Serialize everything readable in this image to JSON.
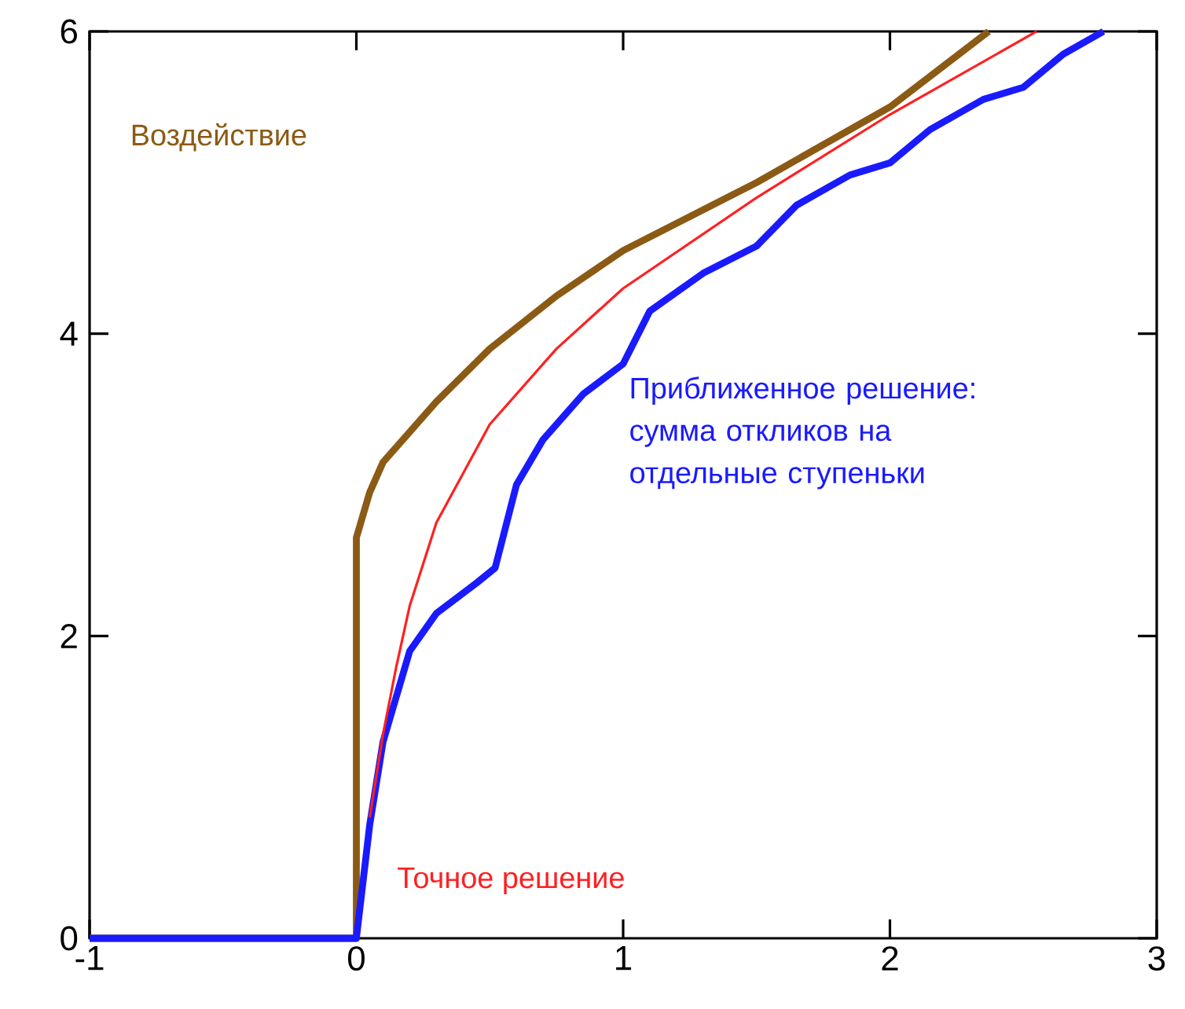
{
  "chart_data": {
    "type": "line",
    "xlim": [
      -1,
      3
    ],
    "ylim": [
      0,
      6
    ],
    "xticks": [
      -1,
      0,
      1,
      2,
      3
    ],
    "yticks": [
      0,
      2,
      4,
      6
    ],
    "grid": false,
    "marker": "none",
    "line_style": "solid",
    "series": [
      {
        "name": "Воздействие",
        "color": "#8b5a14",
        "x": [
          -1,
          0,
          0,
          0.05,
          0.1,
          0.2,
          0.3,
          0.5,
          0.75,
          1.0,
          1.5,
          2.0,
          2.37
        ],
        "values": [
          0,
          0,
          2.65,
          2.95,
          3.15,
          3.35,
          3.55,
          3.9,
          4.25,
          4.55,
          5.0,
          5.5,
          6.0
        ]
      },
      {
        "name": "Приближенное решение: сумма откликов на отдельные ступеньки",
        "color": "#1a1aff",
        "x": [
          -1,
          0,
          0.05,
          0.1,
          0.2,
          0.3,
          0.45,
          0.52,
          0.6,
          0.7,
          0.85,
          1.0,
          1.1,
          1.3,
          1.5,
          1.65,
          1.85,
          2.0,
          2.15,
          2.35,
          2.5,
          2.65,
          2.8
        ],
        "values": [
          0,
          0,
          0.75,
          1.3,
          1.9,
          2.15,
          2.35,
          2.45,
          3.0,
          3.3,
          3.6,
          3.8,
          4.15,
          4.4,
          4.58,
          4.85,
          5.05,
          5.13,
          5.35,
          5.55,
          5.63,
          5.85,
          6.0
        ]
      },
      {
        "name": "Точное решение",
        "color": "#ff2020",
        "x": [
          0.05,
          0.1,
          0.15,
          0.2,
          0.3,
          0.5,
          0.75,
          1.0,
          1.5,
          2.0,
          2.55
        ],
        "values": [
          0.8,
          1.35,
          1.8,
          2.2,
          2.75,
          3.4,
          3.9,
          4.3,
          4.9,
          5.45,
          6.0
        ]
      }
    ]
  }
}
